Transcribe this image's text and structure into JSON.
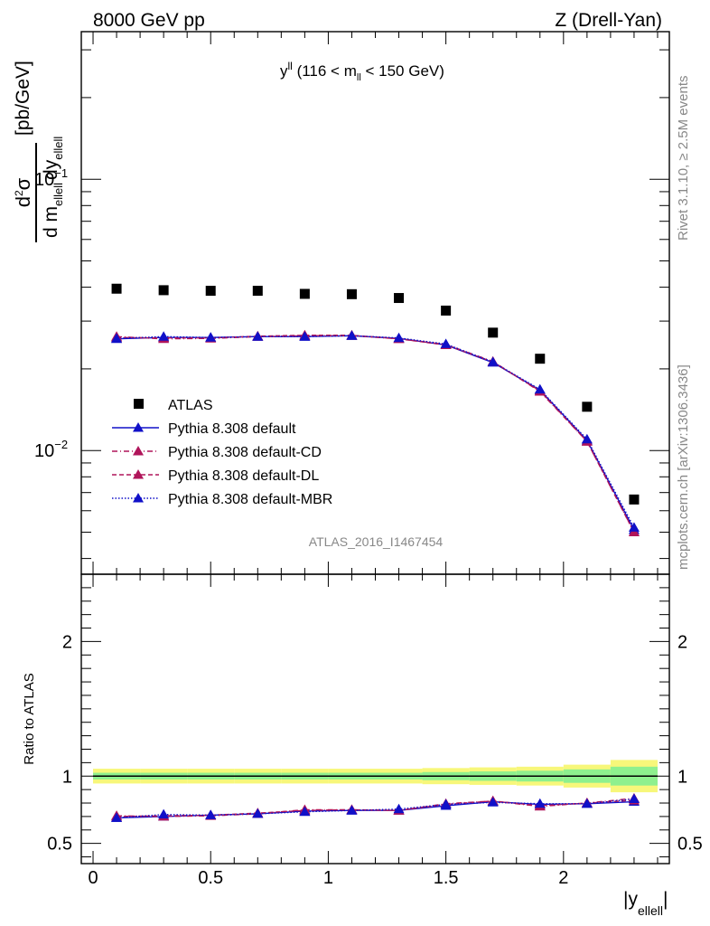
{
  "header": {
    "left": "8000 GeV pp",
    "right": "Z (Drell-Yan)"
  },
  "side_labels": {
    "rivet": "Rivet 3.1.10, ≥ 2.5M events",
    "mcplots": "mcplots.cern.ch [arXiv:1306.3436]"
  },
  "chart_data": [
    {
      "type": "scatter",
      "title_main": "y",
      "title_sup": "ll",
      "title_rest1": " (116 < m",
      "title_sub": "ll",
      "title_rest2": " < 150 GeV)",
      "ylabel": {
        "num_d": "d",
        "num_sup": "2",
        "num_sigma": "σ",
        "den_a": "d m",
        "den_a_sub": "ellell",
        "den_b": "dy",
        "den_b_sub": "ellell",
        "units": "[pb/GeV]"
      },
      "yscale": "log",
      "ylim": [
        0.0035,
        0.35
      ],
      "xlim": [
        -0.05,
        2.45
      ],
      "ytick_labels": [
        {
          "value": 0.1,
          "base": "10",
          "exp": "−1"
        },
        {
          "value": 0.01,
          "base": "10",
          "exp": "−2"
        }
      ],
      "analysis_label": "ATLAS_2016_I1467454",
      "x": [
        0.1,
        0.3,
        0.5,
        0.7,
        0.9,
        1.1,
        1.3,
        1.5,
        1.7,
        1.9,
        2.1,
        2.3
      ],
      "data": {
        "name": "ATLAS",
        "values": [
          0.0395,
          0.039,
          0.0388,
          0.0388,
          0.0378,
          0.0377,
          0.0365,
          0.0328,
          0.0272,
          0.0218,
          0.0145,
          0.0066
        ]
      },
      "series": [
        {
          "name": "Pythia 8.308 default",
          "color": "#1010c8",
          "dash": "",
          "values": [
            0.0258,
            0.0261,
            0.0261,
            0.0263,
            0.0263,
            0.0265,
            0.0259,
            0.0245,
            0.0211,
            0.0167,
            0.0109,
            0.0051
          ]
        },
        {
          "name": "Pythia 8.308 default-CD",
          "color": "#b0155a",
          "dash": "6,3,1,3",
          "values": [
            0.0263,
            0.0258,
            0.0259,
            0.0263,
            0.0265,
            0.0265,
            0.0258,
            0.0246,
            0.0213,
            0.0165,
            0.0108,
            0.005
          ]
        },
        {
          "name": "Pythia 8.308 default-DL",
          "color": "#b0155a",
          "dash": "5,3",
          "values": [
            0.0261,
            0.026,
            0.026,
            0.0264,
            0.0266,
            0.0266,
            0.0258,
            0.0245,
            0.0212,
            0.0166,
            0.0108,
            0.005
          ]
        },
        {
          "name": "Pythia 8.308 default-MBR",
          "color": "#1010c8",
          "dash": "1.5,2",
          "values": [
            0.0259,
            0.0263,
            0.0261,
            0.0263,
            0.0263,
            0.0265,
            0.026,
            0.0247,
            0.0212,
            0.0168,
            0.011,
            0.0052
          ]
        }
      ]
    },
    {
      "type": "scatter",
      "ylabel": "Ratio to ATLAS",
      "xlabel_main": "|y",
      "xlabel_sub": "ellell",
      "xlabel_end": "|",
      "ylim": [
        0.35,
        2.5
      ],
      "xlim": [
        -0.05,
        2.45
      ],
      "yticks": [
        0.5,
        1,
        2
      ],
      "ytick_labels": [
        "0.5",
        "1",
        "2"
      ],
      "xticks": [
        0,
        0.5,
        1,
        1.5,
        2
      ],
      "xtick_labels": [
        "0",
        "0.5",
        "1",
        "1.5",
        "2"
      ],
      "bands": {
        "x_edges": [
          0,
          0.2,
          0.4,
          0.6,
          0.8,
          1.0,
          1.2,
          1.4,
          1.6,
          1.8,
          2.0,
          2.2,
          2.4
        ],
        "outer_halfwidth": [
          0.055,
          0.055,
          0.055,
          0.055,
          0.055,
          0.055,
          0.055,
          0.06,
          0.065,
          0.07,
          0.085,
          0.12
        ],
        "inner_halfwidth": [
          0.025,
          0.025,
          0.025,
          0.025,
          0.025,
          0.025,
          0.025,
          0.03,
          0.035,
          0.04,
          0.05,
          0.07
        ],
        "outer_color": "#f7f77a",
        "inner_color": "#8ef08e"
      },
      "series": [
        {
          "name": "Pythia 8.308 default",
          "color": "#1010c8",
          "dash": "",
          "values": [
            0.69,
            0.7,
            0.71,
            0.72,
            0.74,
            0.745,
            0.745,
            0.78,
            0.81,
            0.79,
            0.795,
            0.81
          ]
        },
        {
          "name": "Pythia 8.308 default-CD",
          "color": "#b0155a",
          "dash": "6,3,1,3",
          "values": [
            0.705,
            0.7,
            0.705,
            0.72,
            0.75,
            0.75,
            0.745,
            0.795,
            0.815,
            0.775,
            0.8,
            0.835
          ]
        },
        {
          "name": "Pythia 8.308 default-DL",
          "color": "#b0155a",
          "dash": "5,3",
          "values": [
            0.7,
            0.705,
            0.71,
            0.725,
            0.745,
            0.75,
            0.745,
            0.79,
            0.815,
            0.78,
            0.8,
            0.82
          ]
        },
        {
          "name": "Pythia 8.308 default-MBR",
          "color": "#1010c8",
          "dash": "1.5,2",
          "values": [
            0.69,
            0.715,
            0.71,
            0.72,
            0.735,
            0.745,
            0.755,
            0.79,
            0.805,
            0.795,
            0.795,
            0.83
          ]
        }
      ]
    }
  ]
}
